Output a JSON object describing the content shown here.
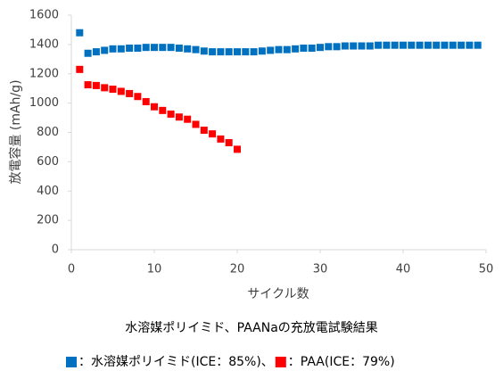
{
  "chart_data": {
    "type": "scatter",
    "title": "水溶媒ポリイミド、PAANaの充放電試験結果",
    "x_label": "サイクル数",
    "y_label": "放電容量 (mAh/g)",
    "xlim": [
      0,
      50
    ],
    "xticks": [
      0,
      10,
      20,
      30,
      40,
      50
    ],
    "ylim": [
      0,
      1600
    ],
    "yticks": [
      0,
      200,
      400,
      600,
      800,
      1000,
      1200,
      1400,
      1600
    ],
    "grid": false,
    "legend": "bottom",
    "series": [
      {
        "name": "：水溶媒ポリイミド(ICE：85%)、",
        "color": "#0070c0",
        "x": [
          1,
          2,
          3,
          4,
          5,
          6,
          7,
          8,
          9,
          10,
          11,
          12,
          13,
          14,
          15,
          16,
          17,
          18,
          19,
          20,
          21,
          22,
          23,
          24,
          25,
          26,
          27,
          28,
          29,
          30,
          31,
          32,
          33,
          34,
          35,
          36,
          37,
          38,
          39,
          40,
          41,
          42,
          43,
          44,
          45,
          46,
          47,
          48,
          49
        ],
        "values": [
          1480,
          1340,
          1350,
          1360,
          1370,
          1370,
          1375,
          1375,
          1380,
          1380,
          1380,
          1380,
          1375,
          1370,
          1365,
          1355,
          1350,
          1350,
          1350,
          1350,
          1350,
          1350,
          1355,
          1360,
          1365,
          1365,
          1370,
          1375,
          1375,
          1380,
          1385,
          1385,
          1390,
          1390,
          1390,
          1390,
          1395,
          1395,
          1395,
          1395,
          1395,
          1395,
          1395,
          1395,
          1395,
          1395,
          1395,
          1395,
          1395
        ]
      },
      {
        "name": "：PAA(ICE：79%)",
        "color": "#ff0000",
        "x": [
          1,
          2,
          3,
          4,
          5,
          6,
          7,
          8,
          9,
          10,
          11,
          12,
          13,
          14,
          15,
          16,
          17,
          18,
          19,
          20
        ],
        "values": [
          1230,
          1125,
          1120,
          1105,
          1095,
          1080,
          1065,
          1045,
          1010,
          975,
          950,
          925,
          905,
          890,
          855,
          815,
          790,
          755,
          730,
          685
        ]
      }
    ]
  }
}
